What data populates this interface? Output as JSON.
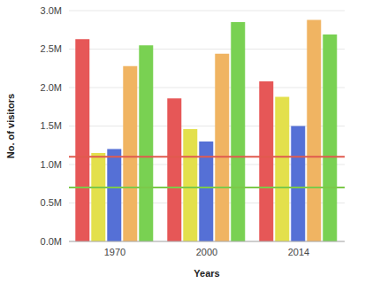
{
  "chart_data": {
    "type": "bar",
    "x_label": "Years",
    "y_label": "No. of visitors",
    "categories": [
      "1970",
      "2000",
      "2014"
    ],
    "series": [
      {
        "color": "#e65757",
        "values": [
          2630000,
          1860000,
          2080000
        ]
      },
      {
        "color": "#e3e04c",
        "values": [
          1150000,
          1460000,
          1880000
        ]
      },
      {
        "color": "#5570d6",
        "values": [
          1200000,
          1300000,
          1500000
        ]
      },
      {
        "color": "#f0b462",
        "values": [
          2280000,
          2440000,
          2880000
        ]
      },
      {
        "color": "#79d152",
        "values": [
          2550000,
          2850000,
          2690000
        ]
      }
    ],
    "reference_lines": [
      {
        "value": 1100000,
        "color": "#e05a4e"
      },
      {
        "value": 700000,
        "color": "#7cc94a"
      }
    ],
    "ylim": [
      0,
      3000000
    ],
    "yticks": [
      {
        "value": 0,
        "label": "0.0M"
      },
      {
        "value": 500000,
        "label": "0.5M"
      },
      {
        "value": 1000000,
        "label": "1.0M"
      },
      {
        "value": 1500000,
        "label": "1.5M"
      },
      {
        "value": 2000000,
        "label": "2.0M"
      },
      {
        "value": 2500000,
        "label": "2.5M"
      },
      {
        "value": 3000000,
        "label": "3.0M"
      }
    ],
    "grid": true
  }
}
